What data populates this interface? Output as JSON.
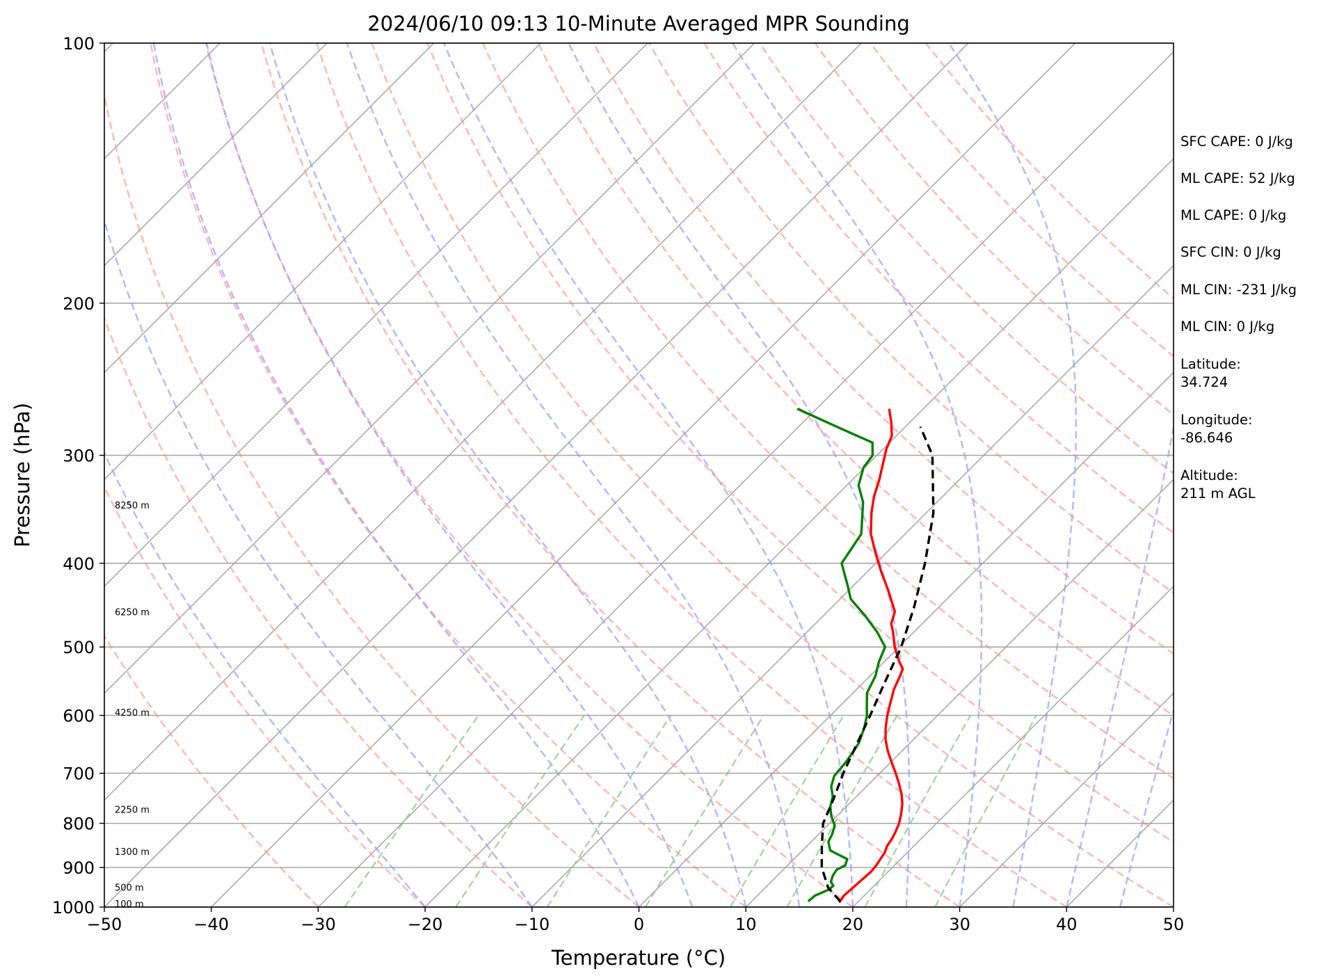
{
  "chart_data": {
    "type": "line",
    "chart_kind": "skew-T log-p",
    "title": "2024/06/10 09:13 10-Minute Averaged MPR Sounding",
    "xlabel": "Temperature (°C)",
    "ylabel": "Pressure (hPa)",
    "xlim": [
      -50,
      50
    ],
    "ylim": [
      1000,
      100
    ],
    "y_scale": "log",
    "x_ticks": [
      -50,
      -40,
      -30,
      -20,
      -10,
      0,
      10,
      20,
      30,
      40,
      50
    ],
    "x_tick_labels": [
      "−50",
      "−40",
      "−30",
      "−20",
      "−10",
      "0",
      "10",
      "20",
      "30",
      "40",
      "50"
    ],
    "y_ticks": [
      100,
      200,
      300,
      400,
      500,
      600,
      700,
      800,
      900,
      1000
    ],
    "y_tick_labels": [
      "100",
      "200",
      "300",
      "400",
      "500",
      "600",
      "700",
      "800",
      "900",
      "1000"
    ],
    "grid": true,
    "colors": {
      "temperature": "#ff0000",
      "dewpoint": "#008000",
      "parcel": "#000000",
      "isotherm": "#a0a0a0",
      "pressure_grid": "#a0a0a0",
      "dry_adiabat": "#ff9999",
      "moist_adiabat": "#9999ff",
      "mixing_ratio": "#99cc99"
    },
    "isotherms_c": [
      -150,
      -140,
      -130,
      -120,
      -110,
      -100,
      -90,
      -80,
      -70,
      -60,
      -50,
      -40,
      -30,
      -20,
      -10,
      0,
      10,
      20,
      30,
      40,
      50
    ],
    "dry_adiabats_c_at_1000": [
      -30,
      -20,
      -10,
      0,
      10,
      20,
      30,
      40,
      50,
      60,
      70,
      80,
      90,
      100,
      110,
      120,
      130,
      140,
      150
    ],
    "moist_adiabats_c_at_1000": [
      -20,
      -10,
      0,
      5,
      10,
      15,
      20,
      25,
      30,
      35,
      40,
      45
    ],
    "mixing_ratios_g_kg": [
      0.4,
      1,
      2,
      4,
      7,
      10,
      16,
      24
    ],
    "height_labels": [
      {
        "text": "100 m",
        "p": 993
      },
      {
        "text": "500 m",
        "p": 950
      },
      {
        "text": "1300 m",
        "p": 864
      },
      {
        "text": "2250 m",
        "p": 772
      },
      {
        "text": "4250 m",
        "p": 596
      },
      {
        "text": "6250 m",
        "p": 456
      },
      {
        "text": "8250 m",
        "p": 343
      }
    ],
    "series": [
      {
        "name": "",
        "role": "temperature",
        "color": "#ff0000",
        "p": [
          988,
          970,
          950,
          930,
          910,
          895,
          880,
          865,
          850,
          835,
          820,
          800,
          780,
          760,
          740,
          720,
          700,
          680,
          660,
          640,
          620,
          600,
          580,
          560,
          540,
          530,
          520,
          510,
          500,
          480,
          470,
          455,
          430,
          410,
          390,
          370,
          350,
          335,
          320,
          305,
          295,
          285,
          275,
          265
        ],
        "t": [
          18.3,
          18.1,
          18.2,
          18.3,
          18.4,
          18.3,
          18.1,
          17.9,
          17.5,
          17.3,
          17.0,
          16.5,
          15.8,
          15.0,
          14.0,
          12.8,
          11.5,
          10.1,
          8.7,
          7.4,
          6.3,
          5.3,
          4.4,
          3.5,
          2.8,
          2.4,
          1.4,
          0.5,
          -0.4,
          -2.0,
          -2.9,
          -3.7,
          -6.3,
          -8.6,
          -10.9,
          -13.2,
          -15.1,
          -16.4,
          -17.5,
          -18.8,
          -19.7,
          -20.4,
          -21.7,
          -23.2
        ]
      },
      {
        "name": "",
        "role": "dewpoint",
        "color": "#008000",
        "p": [
          985,
          970,
          955,
          945,
          935,
          920,
          905,
          895,
          880,
          870,
          860,
          840,
          825,
          805,
          785,
          765,
          745,
          725,
          705,
          680,
          660,
          645,
          620,
          600,
          585,
          565,
          540,
          520,
          500,
          480,
          460,
          440,
          425,
          400,
          370,
          340,
          325,
          310,
          300,
          290,
          280,
          265
        ],
        "t": [
          15.3,
          15.4,
          16.1,
          16.2,
          15.6,
          15.2,
          15.0,
          15.4,
          15.0,
          13.8,
          12.6,
          11.6,
          11.3,
          10.7,
          9.5,
          8.5,
          7.8,
          6.7,
          6.0,
          5.8,
          5.5,
          5.2,
          4.3,
          3.4,
          2.5,
          1.3,
          0.5,
          -0.5,
          -1.3,
          -3.5,
          -6.1,
          -9.0,
          -10.5,
          -13.2,
          -14.1,
          -16.9,
          -18.9,
          -20.1,
          -20.4,
          -21.6,
          -25.6,
          -31.8
        ]
      },
      {
        "name": "",
        "role": "parcel",
        "color": "#000000",
        "dashed": true,
        "p": [
          985,
          950,
          900,
          850,
          800,
          750,
          700,
          650,
          600,
          550,
          500,
          450,
          400,
          350,
          300,
          278
        ],
        "t": [
          18.3,
          15.9,
          13.4,
          11.4,
          9.4,
          8.1,
          6.6,
          5.2,
          3.7,
          2.0,
          0.2,
          -2.3,
          -5.4,
          -9.3,
          -14.8,
          -18.6
        ]
      }
    ]
  },
  "stats": {
    "sfc_cape": "SFC CAPE: 0 J/kg",
    "ml_cape_1": "ML CAPE: 52 J/kg",
    "ml_cape_2": "ML CAPE: 0 J/kg",
    "sfc_cin": "SFC CIN: 0 J/kg",
    "ml_cin_1": "ML CIN: -231 J/kg",
    "ml_cin_2": "ML CIN: 0 J/kg",
    "latitude_label": "Latitude:",
    "latitude_value": "34.724",
    "longitude_label": "Longitude:",
    "longitude_value": "-86.646",
    "altitude_label": "Altitude:",
    "altitude_value": "211 m AGL"
  }
}
